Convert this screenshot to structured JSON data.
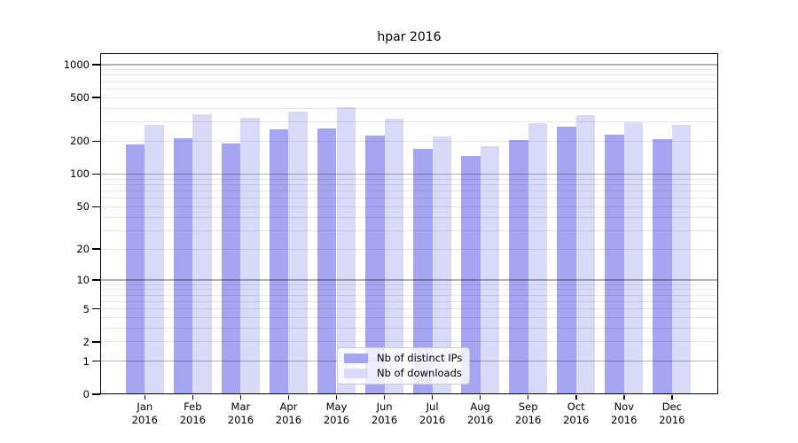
{
  "chart_data": {
    "type": "bar",
    "title": "hpar 2016",
    "year": "2016",
    "categories": [
      "Jan",
      "Feb",
      "Mar",
      "Apr",
      "May",
      "Jun",
      "Jul",
      "Aug",
      "Sep",
      "Oct",
      "Nov",
      "Dec"
    ],
    "series": [
      {
        "name": "Nb of distinct IPs",
        "color": "#a5a5f2",
        "values": [
          186,
          212,
          190,
          255,
          263,
          227,
          170,
          148,
          207,
          272,
          228,
          208
        ]
      },
      {
        "name": "Nb of downloads",
        "color": "#d9d9f8",
        "values": [
          282,
          350,
          327,
          375,
          408,
          320,
          222,
          180,
          293,
          345,
          297,
          283
        ]
      }
    ],
    "xlabel": "",
    "ylabel": "",
    "yscale": "log1p",
    "yticks": [
      0,
      1,
      2,
      5,
      10,
      20,
      50,
      100,
      200,
      500,
      1000
    ],
    "ylim": [
      0,
      1270
    ],
    "grid": "on",
    "legend_position": "lower center",
    "colors": {
      "axis": "#000000",
      "grid_major": "#b0b0b0",
      "grid_minor": "#e8e8e8",
      "background": "#ffffff"
    }
  }
}
